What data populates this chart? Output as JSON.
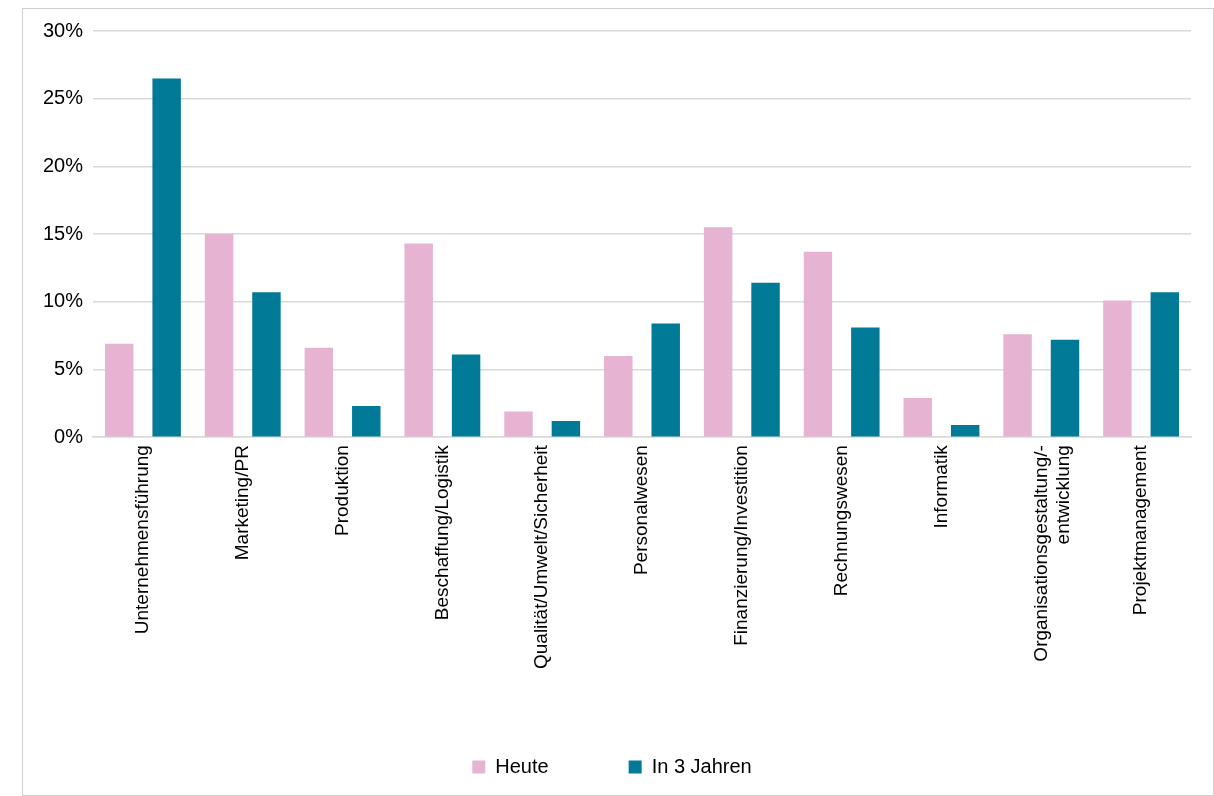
{
  "chart_data": {
    "type": "bar",
    "categories": [
      "Unternehmensführung",
      "Marketing/PR",
      "Produktion",
      "Beschaffung/Logistik",
      "Qualität/Umwelt/Sicherheit",
      "Personalwesen",
      "Finanzierung/Investition",
      "Rechnungswesen",
      "Informatik",
      "Organisationsgestaltung/-\nentwicklung",
      "Projektmanagement"
    ],
    "series": [
      {
        "name": "Heute",
        "color": "#e6b3d2",
        "values": [
          6.9,
          15.0,
          6.6,
          14.3,
          1.9,
          6.0,
          15.5,
          13.7,
          2.9,
          7.6,
          10.1
        ]
      },
      {
        "name": "In 3 Jahren",
        "color": "#007a96",
        "values": [
          26.5,
          10.7,
          2.3,
          6.1,
          1.2,
          8.4,
          11.4,
          8.1,
          0.9,
          7.2,
          10.7
        ]
      }
    ],
    "ylim": [
      0,
      30
    ],
    "yticks": [
      {
        "value": 0,
        "label": "0%"
      },
      {
        "value": 5,
        "label": "5%"
      },
      {
        "value": 10,
        "label": "10%"
      },
      {
        "value": 15,
        "label": "15%"
      },
      {
        "value": 20,
        "label": "20%"
      },
      {
        "value": 25,
        "label": "25%"
      },
      {
        "value": 30,
        "label": "30%"
      }
    ],
    "grid": "y",
    "legend": "bottom"
  }
}
